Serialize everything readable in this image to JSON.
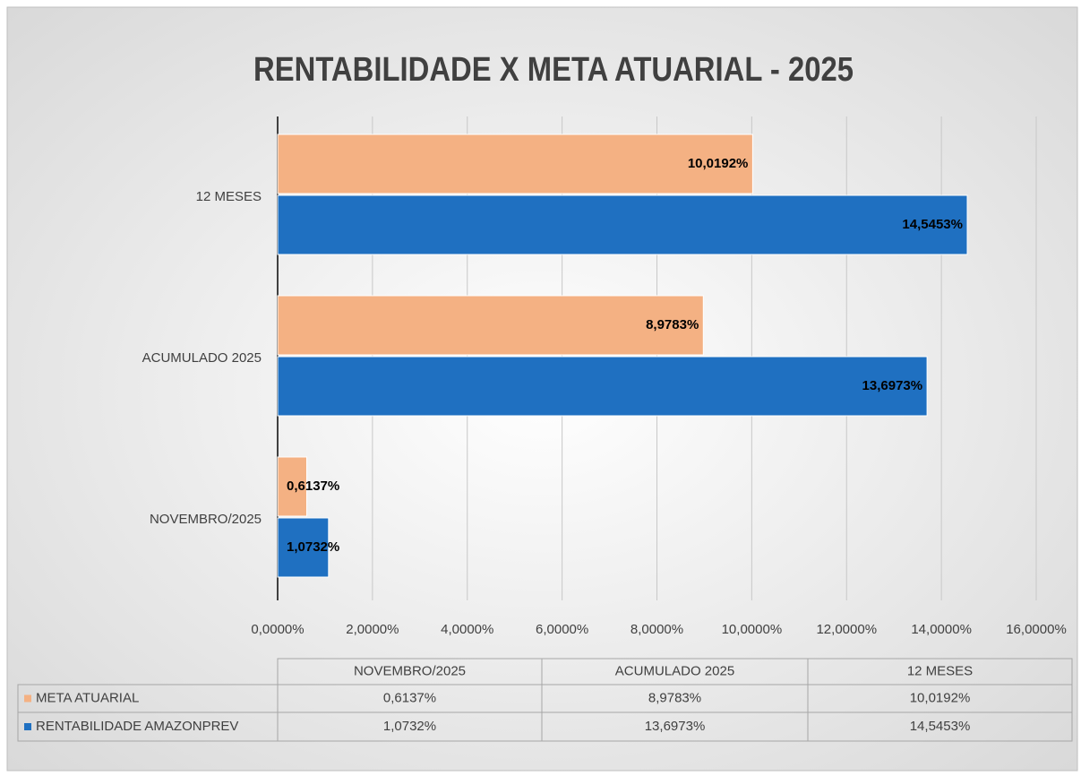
{
  "chart_data": {
    "type": "bar",
    "orientation": "horizontal",
    "title": "RENTABILIDADE X META ATUARIAL - 2025",
    "categories": [
      "NOVEMBRO/2025",
      "ACUMULADO 2025",
      "12 MESES"
    ],
    "series": [
      {
        "name": "META ATUARIAL",
        "color": "#f4b183",
        "values": [
          0.6137,
          8.9783,
          10.0192
        ],
        "value_labels": [
          "0,6137%",
          "8,9783%",
          "10,0192%"
        ]
      },
      {
        "name": "RENTABILIDADE AMAZONPREV",
        "color": "#1f70c1",
        "values": [
          1.0732,
          13.6973,
          14.5453
        ],
        "value_labels": [
          "1,0732%",
          "13,6973%",
          "14,5453%"
        ]
      }
    ],
    "xlim": [
      0,
      16
    ],
    "xticks": [
      {
        "value": 0,
        "label": "0,0000%"
      },
      {
        "value": 2,
        "label": "2,0000%"
      },
      {
        "value": 4,
        "label": "4,0000%"
      },
      {
        "value": 6,
        "label": "6,0000%"
      },
      {
        "value": 8,
        "label": "8,0000%"
      },
      {
        "value": 10,
        "label": "10,0000%"
      },
      {
        "value": 12,
        "label": "12,0000%"
      },
      {
        "value": 14,
        "label": "14,0000%"
      },
      {
        "value": 16,
        "label": "16,0000%"
      }
    ],
    "grid": true,
    "data_table": true
  }
}
